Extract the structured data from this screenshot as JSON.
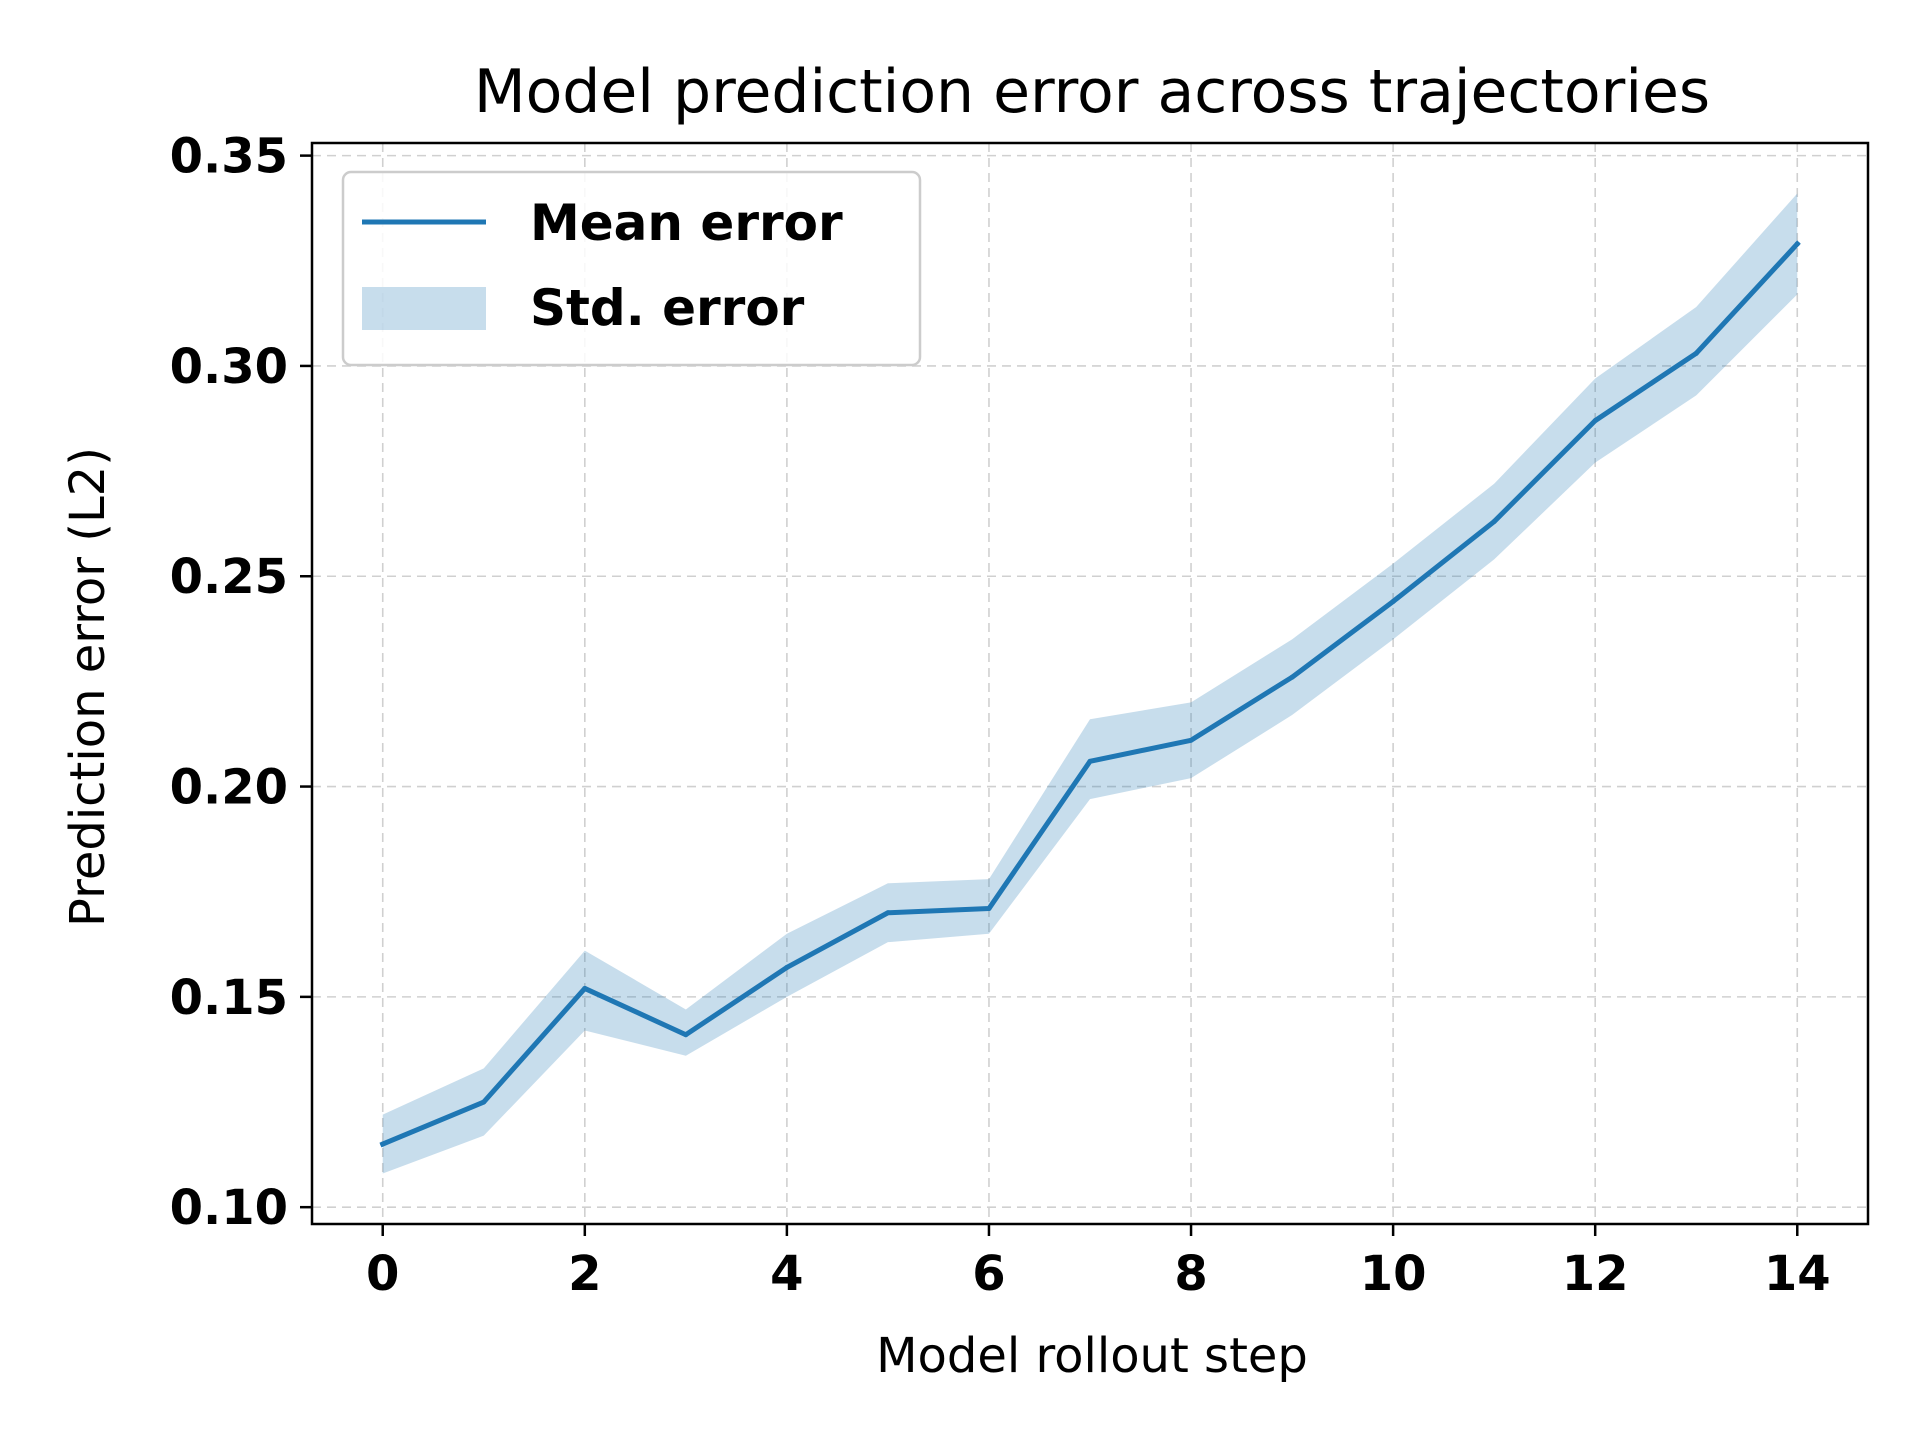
{
  "chart_data": {
    "type": "line",
    "title": "Model prediction error across trajectories",
    "xlabel": "Model rollout step",
    "ylabel": "Prediction error (L2)",
    "x": [
      0,
      1,
      2,
      3,
      4,
      5,
      6,
      7,
      8,
      9,
      10,
      11,
      12,
      13,
      14
    ],
    "xlim": [
      -0.7,
      14.7
    ],
    "ylim": [
      0.096,
      0.353
    ],
    "xticks": [
      0,
      2,
      4,
      6,
      8,
      10,
      12,
      14
    ],
    "xtick_labels": [
      "0",
      "2",
      "4",
      "6",
      "8",
      "10",
      "12",
      "14"
    ],
    "yticks": [
      0.1,
      0.15,
      0.2,
      0.25,
      0.3,
      0.35
    ],
    "ytick_labels": [
      "0.10",
      "0.15",
      "0.20",
      "0.25",
      "0.30",
      "0.35"
    ],
    "grid": true,
    "legend_position": "top-left",
    "series": [
      {
        "name": "Mean error",
        "kind": "line",
        "color": "#1f77b4",
        "values": [
          0.115,
          0.125,
          0.152,
          0.141,
          0.157,
          0.17,
          0.171,
          0.206,
          0.211,
          0.226,
          0.244,
          0.263,
          0.287,
          0.303,
          0.329
        ]
      },
      {
        "name": "Std. error",
        "kind": "band",
        "color": "#1f77b4",
        "opacity": 0.25,
        "lower": [
          0.108,
          0.117,
          0.142,
          0.136,
          0.15,
          0.163,
          0.165,
          0.197,
          0.202,
          0.217,
          0.235,
          0.254,
          0.277,
          0.293,
          0.317
        ],
        "upper": [
          0.122,
          0.133,
          0.161,
          0.147,
          0.165,
          0.177,
          0.178,
          0.216,
          0.22,
          0.235,
          0.253,
          0.272,
          0.297,
          0.314,
          0.341
        ]
      }
    ]
  }
}
